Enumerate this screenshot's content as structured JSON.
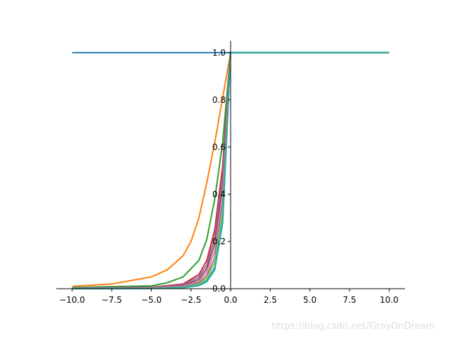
{
  "chart_data": {
    "type": "line",
    "title": "",
    "xlabel": "",
    "ylabel": "",
    "xlim": [
      -11,
      11
    ],
    "ylim": [
      0,
      1.05
    ],
    "grid": false,
    "legend": "none",
    "x_ticks": [
      "−10.0",
      "−7.5",
      "−5.0",
      "−2.5",
      "0.0",
      "2.5",
      "5.0",
      "7.5",
      "10.0"
    ],
    "x_tick_values": [
      -10,
      -7.5,
      -5,
      -2.5,
      0,
      2.5,
      5,
      7.5,
      10
    ],
    "y_ticks": [
      "0.0",
      "0.2",
      "0.4",
      "0.6",
      "0.8",
      "1.0"
    ],
    "y_tick_values": [
      0,
      0.2,
      0.4,
      0.6,
      0.8,
      1.0
    ],
    "series": [
      {
        "color": "#1f77b4",
        "x": [
          -10,
          0,
          10
        ],
        "y": [
          1.0,
          1.0,
          1.0
        ]
      },
      {
        "color": "#ff7f0e",
        "x": [
          -10,
          -7.5,
          -5,
          -4,
          -3,
          -2.5,
          -2,
          -1.5,
          -1,
          -0.5,
          0,
          10
        ],
        "y": [
          0.01,
          0.02,
          0.05,
          0.08,
          0.14,
          0.2,
          0.3,
          0.45,
          0.62,
          0.81,
          1.0,
          1.0
        ]
      },
      {
        "color": "#2ca02c",
        "x": [
          -10,
          -5,
          -4,
          -3,
          -2,
          -1.5,
          -1,
          -0.5,
          0,
          10
        ],
        "y": [
          0.005,
          0.012,
          0.025,
          0.05,
          0.12,
          0.21,
          0.38,
          0.62,
          1.0,
          1.0
        ]
      },
      {
        "color": "#d62728",
        "x": [
          -10,
          -5,
          -3,
          -2,
          -1.5,
          -1,
          -0.5,
          0,
          10
        ],
        "y": [
          0.003,
          0.006,
          0.02,
          0.06,
          0.12,
          0.25,
          0.52,
          1.0,
          1.0
        ]
      },
      {
        "color": "#9467bd",
        "x": [
          -10,
          -5,
          -3,
          -2,
          -1.5,
          -1,
          -0.5,
          0,
          10
        ],
        "y": [
          0.003,
          0.005,
          0.016,
          0.05,
          0.1,
          0.22,
          0.48,
          1.0,
          1.0
        ]
      },
      {
        "color": "#8c564b",
        "x": [
          -10,
          -5,
          -3,
          -2,
          -1.5,
          -1,
          -0.5,
          0,
          10
        ],
        "y": [
          0.002,
          0.004,
          0.012,
          0.04,
          0.085,
          0.19,
          0.44,
          1.0,
          1.0
        ]
      },
      {
        "color": "#e377c2",
        "x": [
          -10,
          -5,
          -3,
          -2,
          -1.5,
          -1,
          -0.5,
          0,
          10
        ],
        "y": [
          0.002,
          0.003,
          0.01,
          0.032,
          0.07,
          0.16,
          0.4,
          1.0,
          1.0
        ]
      },
      {
        "color": "#7f7f7f",
        "x": [
          -10,
          -5,
          -3,
          -2,
          -1.5,
          -1,
          -0.5,
          0,
          10
        ],
        "y": [
          0.001,
          0.002,
          0.008,
          0.025,
          0.055,
          0.13,
          0.36,
          1.0,
          1.0
        ]
      },
      {
        "color": "#bcbd22",
        "x": [
          -10,
          -5,
          -3,
          -2,
          -1.5,
          -1,
          -0.5,
          0,
          10
        ],
        "y": [
          0.001,
          0.002,
          0.006,
          0.02,
          0.045,
          0.11,
          0.33,
          1.0,
          1.0
        ]
      },
      {
        "color": "#17becf",
        "x": [
          -10,
          -5,
          -3,
          -2,
          -1.5,
          -1,
          -0.5,
          0,
          10
        ],
        "y": [
          0.001,
          0.001,
          0.005,
          0.016,
          0.036,
          0.09,
          0.3,
          1.0,
          1.0
        ]
      },
      {
        "color": "#2ca6a4",
        "x": [
          -10,
          -5,
          -3,
          -2,
          -1.5,
          -1,
          -0.5,
          0,
          10
        ],
        "y": [
          0.0005,
          0.001,
          0.004,
          0.013,
          0.03,
          0.08,
          0.28,
          1.0,
          1.0
        ]
      }
    ]
  },
  "watermark": "https://blog.csdn.net/GrayOnDream"
}
